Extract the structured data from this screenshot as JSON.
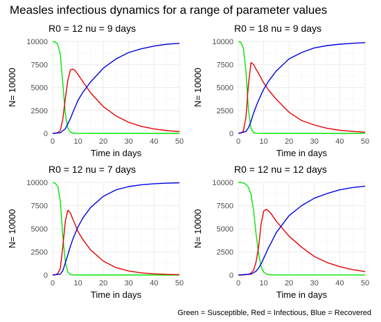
{
  "title": "Measles infectious dynamics for a range of parameter values",
  "caption": "Green = Susceptible, Red = Infectious, Blue = Recovered",
  "colors": {
    "susceptible": "#00e600",
    "infectious": "#e60000",
    "recovered": "#0000e0"
  },
  "chart_data": [
    {
      "type": "line",
      "title": "R0 = 12 nu = 9 days",
      "xlabel": "Time in days",
      "ylabel": "N= 10000",
      "xlim": [
        0,
        50
      ],
      "ylim": [
        0,
        10000
      ],
      "xticks": [
        0,
        10,
        20,
        30,
        40,
        50
      ],
      "yticks": [
        0,
        2500,
        5000,
        7500,
        10000
      ],
      "params": {
        "R0": 12,
        "nu": 9
      },
      "series": [
        {
          "color": "#00e600",
          "x": [
            0,
            1,
            2,
            3,
            4,
            5,
            6,
            7,
            8,
            10,
            15,
            50
          ],
          "values": [
            10000,
            9950,
            9700,
            8600,
            5500,
            2100,
            560,
            140,
            40,
            5,
            0,
            0
          ]
        },
        {
          "color": "#e60000",
          "x": [
            0,
            1,
            2,
            3,
            4,
            5,
            6,
            7,
            8,
            9,
            10,
            12,
            15,
            20,
            25,
            30,
            35,
            40,
            45,
            50
          ],
          "values": [
            2,
            20,
            80,
            300,
            1500,
            3800,
            5800,
            6900,
            7000,
            6800,
            6400,
            5600,
            4400,
            2900,
            1900,
            1200,
            760,
            480,
            300,
            190
          ]
        },
        {
          "color": "#0000e0",
          "x": [
            0,
            3,
            5,
            7,
            8,
            10,
            12,
            15,
            20,
            25,
            30,
            35,
            40,
            45,
            50
          ],
          "values": [
            0,
            60,
            500,
            1600,
            2300,
            3600,
            4500,
            5600,
            7100,
            8100,
            8800,
            9200,
            9500,
            9700,
            9800
          ]
        }
      ]
    },
    {
      "type": "line",
      "title": "R0 = 18 nu = 9 days",
      "xlabel": "Time in days",
      "ylabel": "N= 10000",
      "xlim": [
        0,
        50
      ],
      "ylim": [
        0,
        10000
      ],
      "xticks": [
        0,
        10,
        20,
        30,
        40,
        50
      ],
      "yticks": [
        0,
        2500,
        5000,
        7500,
        10000
      ],
      "params": {
        "R0": 18,
        "nu": 9
      },
      "series": [
        {
          "color": "#00e600",
          "x": [
            0,
            1,
            2,
            3,
            4,
            5,
            6,
            7,
            10,
            50
          ],
          "values": [
            10000,
            9900,
            9300,
            6800,
            2600,
            500,
            90,
            15,
            0,
            0
          ]
        },
        {
          "color": "#e60000",
          "x": [
            0,
            1,
            2,
            3,
            4,
            5,
            6,
            7,
            8,
            10,
            12,
            15,
            20,
            25,
            30,
            35,
            40,
            45,
            50
          ],
          "values": [
            2,
            30,
            250,
            1700,
            5300,
            7700,
            7500,
            7000,
            6500,
            5500,
            4700,
            3700,
            2300,
            1400,
            900,
            550,
            340,
            210,
            130
          ]
        },
        {
          "color": "#0000e0",
          "x": [
            0,
            3,
            4,
            5,
            6,
            7,
            8,
            10,
            12,
            15,
            20,
            25,
            30,
            35,
            40,
            45,
            50
          ],
          "values": [
            0,
            200,
            600,
            1300,
            2200,
            2900,
            3600,
            4800,
            5700,
            6800,
            8100,
            8800,
            9300,
            9550,
            9700,
            9800,
            9870
          ]
        }
      ]
    },
    {
      "type": "line",
      "title": "R0 = 12 nu = 7 days",
      "xlabel": "Time in days",
      "ylabel": "N= 10000",
      "xlim": [
        0,
        50
      ],
      "ylim": [
        0,
        10000
      ],
      "xticks": [
        0,
        10,
        20,
        30,
        40,
        50
      ],
      "yticks": [
        0,
        2500,
        5000,
        7500,
        10000
      ],
      "params": {
        "R0": 12,
        "nu": 7
      },
      "series": [
        {
          "color": "#00e600",
          "x": [
            0,
            1,
            2,
            3,
            4,
            5,
            6,
            7,
            8,
            10,
            50
          ],
          "values": [
            10000,
            9900,
            9600,
            8000,
            4300,
            1400,
            300,
            60,
            10,
            0,
            0
          ]
        },
        {
          "color": "#e60000",
          "x": [
            0,
            1,
            2,
            3,
            4,
            5,
            6,
            7,
            8,
            9,
            10,
            12,
            15,
            20,
            25,
            30,
            35,
            40,
            45,
            50
          ],
          "values": [
            2,
            30,
            150,
            700,
            3000,
            5800,
            7000,
            6700,
            6000,
            5400,
            4700,
            3800,
            2700,
            1500,
            800,
            430,
            230,
            130,
            70,
            40
          ]
        },
        {
          "color": "#0000e0",
          "x": [
            0,
            3,
            4,
            5,
            6,
            7,
            8,
            10,
            12,
            15,
            20,
            25,
            30,
            35,
            40,
            45,
            50
          ],
          "values": [
            0,
            100,
            450,
            1300,
            2200,
            3100,
            3900,
            5200,
            6200,
            7300,
            8500,
            9200,
            9550,
            9750,
            9860,
            9920,
            9960
          ]
        }
      ]
    },
    {
      "type": "line",
      "title": "R0 = 12 nu = 12 days",
      "xlabel": "Time in days",
      "ylabel": "N= 10000",
      "xlim": [
        0,
        50
      ],
      "ylim": [
        0,
        10000
      ],
      "xticks": [
        0,
        10,
        20,
        30,
        40,
        50
      ],
      "yticks": [
        0,
        2500,
        5000,
        7500,
        10000
      ],
      "params": {
        "R0": 12,
        "nu": 12
      },
      "series": [
        {
          "color": "#00e600",
          "x": [
            0,
            1,
            2,
            3,
            4,
            5,
            6,
            7,
            8,
            9,
            10,
            11,
            12,
            14,
            50
          ],
          "values": [
            10000,
            10000,
            9950,
            9800,
            9500,
            8700,
            7000,
            4500,
            2300,
            900,
            330,
            110,
            35,
            5,
            0
          ]
        },
        {
          "color": "#e60000",
          "x": [
            0,
            2,
            4,
            5,
            6,
            7,
            8,
            9,
            10,
            11,
            12,
            13,
            15,
            20,
            25,
            30,
            35,
            40,
            45,
            50
          ],
          "values": [
            0,
            10,
            70,
            200,
            500,
            1400,
            3000,
            5500,
            6900,
            7100,
            6900,
            6600,
            5800,
            4200,
            3000,
            2000,
            1350,
            900,
            580,
            380
          ]
        },
        {
          "color": "#0000e0",
          "x": [
            0,
            5,
            7,
            8,
            9,
            10,
            11,
            12,
            13,
            15,
            20,
            25,
            30,
            35,
            40,
            45,
            50
          ],
          "values": [
            0,
            100,
            400,
            750,
            1200,
            1800,
            2400,
            3000,
            3500,
            4600,
            6400,
            7500,
            8300,
            8800,
            9200,
            9450,
            9600
          ]
        }
      ]
    }
  ]
}
